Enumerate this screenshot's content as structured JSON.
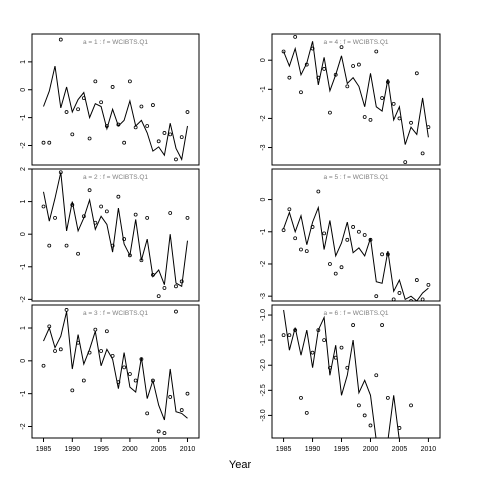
{
  "chart_data": {
    "type": "line",
    "xlabel": "Year",
    "panels": [
      {
        "title": "a = 1  :  f = WCIBTS.Q1",
        "xlim": [
          1983,
          2012
        ],
        "ylim": [
          -2.7,
          2.0
        ],
        "yticks": [
          -2,
          -1,
          0,
          1
        ],
        "xticks": [],
        "line": {
          "x": [
            1985,
            1986,
            1987,
            1988,
            1989,
            1990,
            1991,
            1992,
            1993,
            1994,
            1995,
            1996,
            1997,
            1998,
            1999,
            2000,
            2001,
            2002,
            2003,
            2004,
            2005,
            2006,
            2007,
            2008,
            2009,
            2010
          ],
          "y": [
            -0.6,
            -0.05,
            0.85,
            -0.65,
            0.1,
            -0.8,
            -0.35,
            -0.1,
            -1.0,
            -0.5,
            -0.6,
            -1.4,
            -0.7,
            -1.3,
            -1.1,
            -0.4,
            -1.3,
            -1.1,
            -1.55,
            -2.2,
            -2.05,
            -2.35,
            -1.2,
            -2.1,
            -2.5,
            -1.3
          ]
        },
        "points": {
          "x": [
            1985,
            1986,
            1988,
            1989,
            1990,
            1991,
            1992,
            1993,
            1994,
            1995,
            1996,
            1997,
            1998,
            1999,
            2000,
            2001,
            2002,
            2003,
            2004,
            2005,
            2006,
            2007,
            2008,
            2009,
            2010
          ],
          "y": [
            -1.9,
            -1.9,
            1.8,
            -0.8,
            -1.6,
            -0.7,
            -0.3,
            -1.75,
            0.3,
            -0.45,
            -1.3,
            0.1,
            -1.25,
            -1.9,
            0.3,
            -1.35,
            -0.6,
            -1.3,
            -0.55,
            -1.85,
            -1.55,
            -1.6,
            -2.5,
            -1.7,
            -0.8
          ]
        }
      },
      {
        "title": "a = 4  :  f = WCIBTS.Q1",
        "xlim": [
          1983,
          2012
        ],
        "ylim": [
          -3.6,
          0.9
        ],
        "yticks": [
          -3,
          -2,
          -1,
          0
        ],
        "xticks": [],
        "line": {
          "x": [
            1985,
            1986,
            1987,
            1988,
            1989,
            1990,
            1991,
            1992,
            1993,
            1994,
            1995,
            1996,
            1997,
            1998,
            1999,
            2000,
            2001,
            2002,
            2003,
            2004,
            2005,
            2006,
            2007,
            2008,
            2009,
            2010
          ],
          "y": [
            0.3,
            -0.2,
            0.4,
            -0.5,
            -0.1,
            0.65,
            -0.85,
            0.1,
            -1.05,
            -0.5,
            0.15,
            -0.8,
            -0.6,
            -0.9,
            -1.6,
            -0.45,
            -1.6,
            -1.75,
            -0.65,
            -2.05,
            -1.6,
            -2.9,
            -2.3,
            -2.55,
            -1.3,
            -2.65
          ]
        },
        "points": {
          "x": [
            1985,
            1986,
            1987,
            1988,
            1989,
            1990,
            1991,
            1992,
            1993,
            1994,
            1995,
            1996,
            1997,
            1998,
            1999,
            2000,
            2001,
            2002,
            2003,
            2004,
            2005,
            2006,
            2007,
            2008,
            2009,
            2010
          ],
          "y": [
            0.3,
            -0.6,
            0.8,
            -1.1,
            -0.15,
            0.4,
            -0.6,
            -0.3,
            -1.8,
            -0.5,
            0.45,
            -0.9,
            -0.2,
            -0.15,
            -1.95,
            -2.05,
            0.3,
            -1.3,
            -0.75,
            -1.5,
            -2.0,
            -3.5,
            -2.15,
            -0.45,
            -3.2,
            -2.3
          ]
        }
      },
      {
        "title": "a = 2  :  f = WCIBTS.Q1",
        "xlim": [
          1983,
          2012
        ],
        "ylim": [
          -2.05,
          2.0
        ],
        "yticks": [
          -2,
          -1,
          0,
          1,
          2
        ],
        "xticks": [],
        "line": {
          "x": [
            1985,
            1986,
            1987,
            1988,
            1989,
            1990,
            1991,
            1992,
            1993,
            1994,
            1995,
            1996,
            1997,
            1998,
            1999,
            2000,
            2001,
            2002,
            2003,
            2004,
            2005,
            2006,
            2007,
            2008,
            2009,
            2010
          ],
          "y": [
            1.3,
            0.4,
            1.1,
            1.9,
            0.1,
            1.0,
            0.1,
            0.5,
            1.05,
            0.15,
            0.55,
            0.3,
            -0.55,
            0.8,
            -0.3,
            -0.65,
            0.45,
            -0.8,
            -0.15,
            -1.3,
            -1.1,
            -1.55,
            0.0,
            -1.5,
            -1.6,
            -0.2
          ]
        },
        "points": {
          "x": [
            1985,
            1986,
            1987,
            1988,
            1989,
            1990,
            1991,
            1992,
            1993,
            1994,
            1995,
            1996,
            1997,
            1998,
            1999,
            2000,
            2001,
            2002,
            2003,
            2004,
            2005,
            2006,
            2007,
            2008,
            2009,
            2010
          ],
          "y": [
            0.85,
            -0.35,
            0.5,
            1.9,
            -0.35,
            0.9,
            -0.6,
            0.55,
            1.35,
            0.35,
            0.85,
            0.7,
            -0.35,
            1.15,
            -0.15,
            -0.65,
            0.6,
            -0.8,
            0.5,
            -1.25,
            -1.9,
            -1.65,
            0.65,
            -1.6,
            -1.45,
            0.5
          ]
        }
      },
      {
        "title": "a = 5  :  f = WCIBTS.Q1",
        "xlim": [
          1983,
          2012
        ],
        "ylim": [
          -3.15,
          0.95
        ],
        "yticks": [
          -3,
          -2,
          -1,
          0
        ],
        "xticks": [],
        "line": {
          "x": [
            1985,
            1986,
            1987,
            1988,
            1989,
            1990,
            1991,
            1992,
            1993,
            1994,
            1995,
            1996,
            1997,
            1998,
            1999,
            2000,
            2001,
            2002,
            2003,
            2004,
            2005,
            2006,
            2007,
            2008,
            2009,
            2010
          ],
          "y": [
            -0.9,
            -0.4,
            -1.0,
            -0.5,
            -1.4,
            -0.7,
            -0.25,
            -1.55,
            -0.65,
            -1.75,
            -1.35,
            -0.7,
            -1.65,
            -1.5,
            -1.75,
            -1.2,
            -2.55,
            -2.6,
            -1.6,
            -2.85,
            -2.5,
            -3.1,
            -3.0,
            -3.15,
            -2.9,
            -2.75
          ]
        },
        "points": {
          "x": [
            1985,
            1986,
            1987,
            1988,
            1989,
            1990,
            1991,
            1992,
            1993,
            1994,
            1995,
            1996,
            1997,
            1998,
            1999,
            2000,
            2001,
            2002,
            2003,
            2004,
            2005,
            2006,
            2007,
            2008,
            2009,
            2010
          ],
          "y": [
            -0.95,
            -0.3,
            -1.2,
            -1.55,
            -1.6,
            -0.85,
            0.25,
            -1.05,
            -2.0,
            -2.3,
            -2.1,
            -1.25,
            -0.85,
            -1.0,
            -1.1,
            -1.25,
            -3.0,
            -1.7,
            -1.7,
            -3.1,
            -2.9,
            -3.2,
            -3.15,
            -2.5,
            -3.1,
            -2.65
          ]
        }
      },
      {
        "title": "a = 3  :  f = WCIBTS.Q1",
        "xlim": [
          1983,
          2012
        ],
        "ylim": [
          -2.35,
          1.7
        ],
        "yticks": [
          -2,
          -1,
          0,
          1
        ],
        "xticks": [
          1985,
          1990,
          1995,
          2000,
          2005,
          2010
        ],
        "line": {
          "x": [
            1985,
            1986,
            1987,
            1988,
            1989,
            1990,
            1991,
            1992,
            1993,
            1994,
            1995,
            1996,
            1997,
            1998,
            1999,
            2000,
            2001,
            2002,
            2003,
            2004,
            2005,
            2006,
            2007,
            2008,
            2009,
            2010
          ],
          "y": [
            0.6,
            1.0,
            0.4,
            0.75,
            1.5,
            -0.25,
            0.8,
            -0.1,
            0.35,
            0.9,
            -0.15,
            0.35,
            0.05,
            -0.85,
            0.25,
            -0.8,
            -0.95,
            0.1,
            -1.15,
            -0.6,
            -1.35,
            -1.8,
            -0.25,
            -1.55,
            -1.6,
            -1.75
          ]
        },
        "points": {
          "x": [
            1985,
            1986,
            1987,
            1988,
            1989,
            1990,
            1991,
            1992,
            1993,
            1994,
            1995,
            1996,
            1997,
            1998,
            1999,
            2000,
            2001,
            2002,
            2003,
            2004,
            2005,
            2006,
            2007,
            2008,
            2009,
            2010
          ],
          "y": [
            -0.15,
            1.05,
            0.3,
            0.35,
            1.55,
            -0.9,
            0.55,
            -0.6,
            0.25,
            0.95,
            0.3,
            0.9,
            0.15,
            -0.65,
            -0.2,
            -0.4,
            -0.6,
            0.05,
            -1.6,
            -0.6,
            -2.15,
            -2.2,
            -1.1,
            1.5,
            -1.5,
            -1.0
          ]
        }
      },
      {
        "title": "a = 6  :  f = WCIBTS.Q1",
        "xlim": [
          1983,
          2012
        ],
        "ylim": [
          -3.45,
          -0.8
        ],
        "yticks": [
          -3.0,
          -2.5,
          -2.0,
          -1.5,
          -1.0
        ],
        "xticks": [
          1985,
          1990,
          1995,
          2000,
          2005,
          2010
        ],
        "line": {
          "x": [
            1985,
            1986,
            1987,
            1988,
            1989,
            1990,
            1991,
            1992,
            1993,
            1994,
            1995,
            1996,
            1997,
            1998,
            1999,
            2000,
            2001,
            2002,
            2003,
            2004,
            2005,
            2006,
            2007,
            2008,
            2009,
            2010
          ],
          "y": [
            -0.9,
            -1.7,
            -1.25,
            -1.8,
            -1.3,
            -2.05,
            -1.3,
            -1.05,
            -2.2,
            -1.6,
            -2.6,
            -2.2,
            -1.5,
            -2.55,
            -2.3,
            -2.6,
            -3.5,
            -3.5,
            -3.5,
            -2.6,
            -3.5,
            -3.5,
            -3.5,
            -3.5,
            -3.5,
            -3.5
          ]
        },
        "points": {
          "x": [
            1985,
            1986,
            1987,
            1988,
            1989,
            1990,
            1991,
            1992,
            1993,
            1994,
            1995,
            1996,
            1997,
            1998,
            1999,
            2000,
            2001,
            2002,
            2003,
            2004,
            2005,
            2006,
            2007,
            2008,
            2009,
            2010
          ],
          "y": [
            -1.4,
            -1.4,
            -1.3,
            -2.65,
            -2.95,
            -1.75,
            -1.3,
            -1.5,
            -2.05,
            -1.85,
            -1.65,
            -2.05,
            -1.2,
            -2.8,
            -3.0,
            -3.2,
            -2.2,
            -1.2,
            -2.65,
            -3.5,
            -3.25,
            -3.5,
            -2.8,
            -3.5,
            -3.5,
            -3.5
          ]
        }
      }
    ]
  }
}
